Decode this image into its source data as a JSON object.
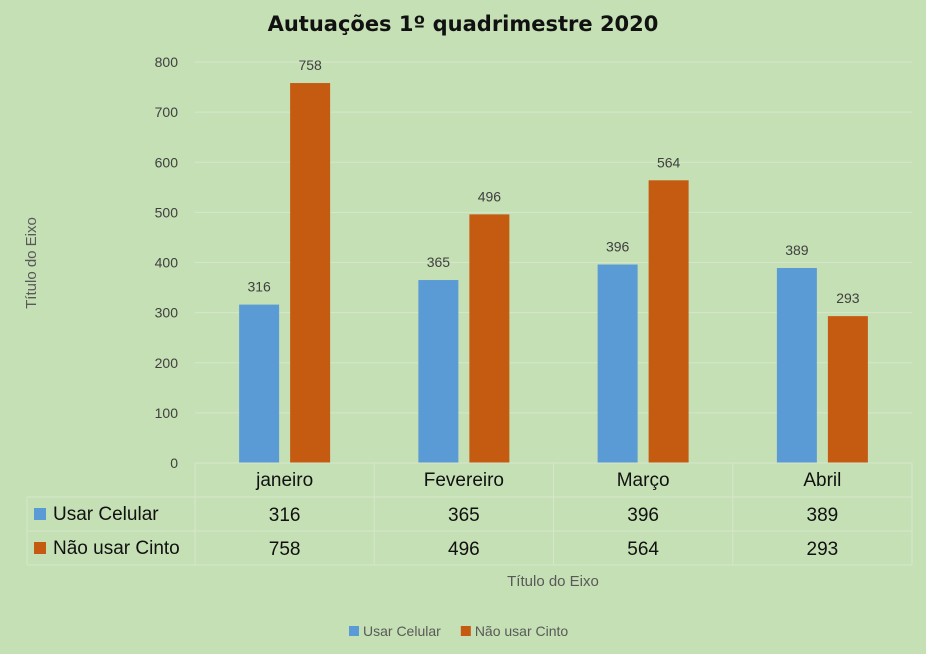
{
  "chart_data": {
    "type": "bar",
    "title": "Autuações 1º quadrimestre 2020",
    "xlabel": "Título do Eixo",
    "ylabel": "Título do Eixo",
    "categories": [
      "janeiro",
      "Fevereiro",
      "Março",
      "Abril"
    ],
    "series": [
      {
        "name": "Usar Celular",
        "values": [
          316,
          365,
          396,
          389
        ],
        "color": "#5b9bd5"
      },
      {
        "name": "Não usar Cinto",
        "values": [
          758,
          496,
          564,
          293
        ],
        "color": "#c55a11"
      }
    ],
    "ylim": [
      0,
      800
    ],
    "yticks": [
      0,
      100,
      200,
      300,
      400,
      500,
      600,
      700,
      800
    ],
    "grid": true,
    "data_labels": true,
    "data_table": true,
    "legend_position": "bottom"
  }
}
